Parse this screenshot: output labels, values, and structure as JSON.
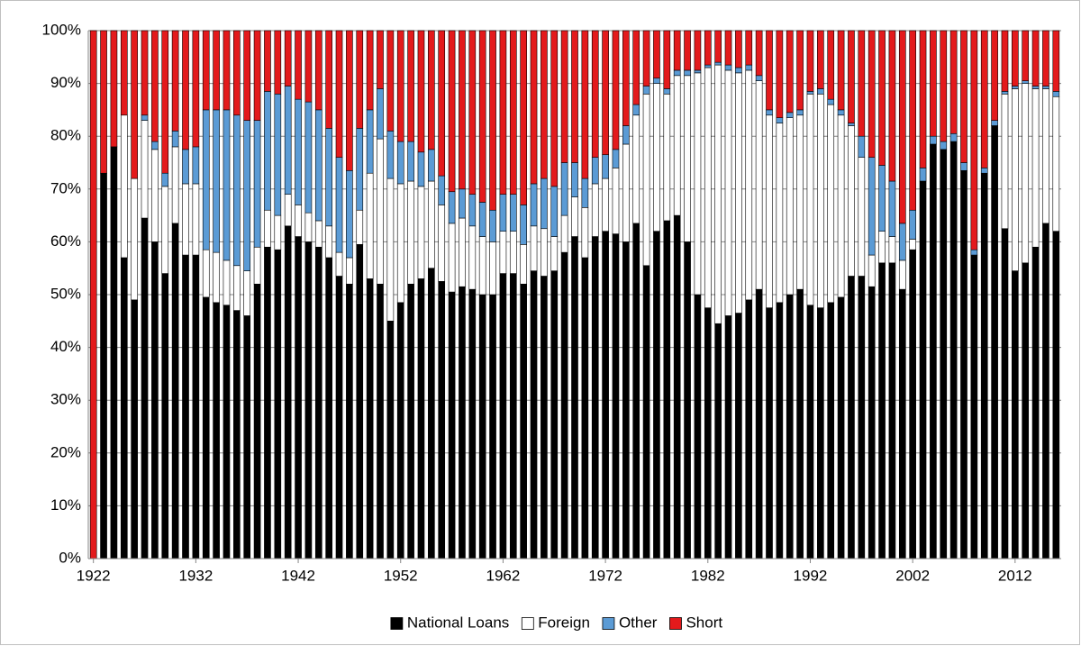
{
  "chart_data": {
    "type": "stacked_bar",
    "categories": [
      "1922",
      null,
      null,
      null,
      null,
      null,
      null,
      null,
      null,
      null,
      "1932",
      null,
      null,
      null,
      null,
      null,
      null,
      null,
      null,
      null,
      "1942",
      null,
      null,
      null,
      null,
      null,
      null,
      null,
      null,
      null,
      "1952",
      null,
      null,
      null,
      null,
      null,
      null,
      null,
      null,
      null,
      "1962",
      null,
      null,
      null,
      null,
      null,
      null,
      null,
      null,
      null,
      "1972",
      null,
      null,
      null,
      null,
      null,
      null,
      null,
      null,
      null,
      "1982",
      null,
      null,
      null,
      null,
      null,
      null,
      null,
      null,
      null,
      "1992",
      null,
      null,
      null,
      null,
      null,
      null,
      null,
      null,
      null,
      "2002",
      null,
      null,
      null,
      null,
      null,
      null,
      null,
      null,
      null,
      "2012",
      null,
      null,
      null,
      null
    ],
    "series": [
      {
        "name": "National Loans",
        "color": "#000000",
        "values": [
          0,
          73,
          78,
          57,
          49,
          64.5,
          60,
          54,
          63.5,
          57.5,
          57.5,
          49.5,
          48.5,
          48,
          47,
          46,
          52,
          59,
          58.5,
          63,
          61,
          60,
          59,
          57,
          53.5,
          52,
          59.5,
          53,
          52,
          45,
          48.5,
          52,
          53,
          55,
          52.5,
          50.5,
          51.5,
          51,
          50,
          50,
          54,
          54,
          52,
          54.5,
          53.5,
          54.5,
          58,
          61,
          57,
          61,
          62,
          61.5,
          60,
          63.5,
          55.5,
          62,
          64,
          65,
          60,
          50,
          47.5,
          44.5,
          46,
          46.5,
          49,
          51,
          47.5,
          48.5,
          50,
          51,
          48,
          47.5,
          48.5,
          49.5,
          53.5,
          53.5,
          51.5,
          56,
          56,
          51,
          58.5,
          71.5,
          78.5,
          77.5,
          79,
          73.5,
          57.5,
          73,
          82,
          62.5,
          54.5,
          56,
          59,
          63.5,
          62
        ]
      },
      {
        "name": "Foreign",
        "color": "#ffffff",
        "values": [
          0,
          0,
          0,
          27,
          23,
          18.5,
          17.5,
          16.5,
          14.5,
          13.5,
          13.5,
          9,
          9.5,
          8.5,
          8.5,
          8.5,
          7,
          7,
          6.5,
          6,
          6,
          5.5,
          5,
          6,
          4.5,
          5,
          6.5,
          20,
          27.5,
          27,
          22.5,
          19.5,
          17.5,
          16.5,
          14.5,
          13,
          13,
          12,
          11,
          10,
          8,
          8,
          7.5,
          8.5,
          9,
          6.5,
          7,
          7.5,
          9.5,
          10,
          10,
          12.5,
          18.5,
          20.5,
          32.5,
          28,
          24,
          26.5,
          31.5,
          42,
          45.5,
          49,
          46.5,
          45.5,
          43.5,
          39.5,
          36.5,
          34,
          33.5,
          33,
          40,
          40.5,
          37.5,
          34.5,
          28.5,
          22.5,
          6,
          6,
          5,
          5.5,
          2,
          0,
          0,
          0,
          0,
          0,
          0,
          0,
          0,
          25.5,
          34.5,
          34,
          30,
          25.5,
          25.5
        ]
      },
      {
        "name": "Other",
        "color": "#5b9bd5",
        "values": [
          0,
          0,
          0,
          0,
          0,
          1,
          1.5,
          2.5,
          3,
          6.5,
          7,
          26.5,
          27,
          28.5,
          28.5,
          28.5,
          24,
          22.5,
          23,
          20.5,
          20,
          21,
          21,
          18.5,
          18,
          16.5,
          15.5,
          12,
          9.5,
          9,
          8,
          7.5,
          6.5,
          6,
          5.5,
          6,
          5.5,
          6,
          6.5,
          6,
          7,
          7,
          7.5,
          8,
          9.5,
          9.5,
          10,
          6.5,
          5.5,
          5,
          4.5,
          3.5,
          3.5,
          2,
          1.5,
          1,
          1,
          1,
          1,
          0.5,
          0.5,
          0.5,
          1,
          1,
          1,
          1,
          1,
          1,
          1,
          1,
          0.5,
          1,
          1,
          1,
          0.5,
          4,
          18.5,
          12.5,
          10.5,
          7,
          5.5,
          2.5,
          1.5,
          1.5,
          1.5,
          1.5,
          1,
          1,
          1,
          0.5,
          0.5,
          0.5,
          0.5,
          0.5,
          1
        ]
      },
      {
        "name": "Short",
        "color": "#e31a1c",
        "values": [
          100,
          27,
          22,
          16,
          28,
          16,
          21,
          27,
          19,
          22.5,
          22,
          15,
          15,
          15,
          16,
          17,
          17,
          11.5,
          12,
          10.5,
          13,
          13.5,
          15,
          18.5,
          24,
          26.5,
          18.5,
          15,
          11,
          19,
          21,
          21,
          23,
          22.5,
          27.5,
          30.5,
          30,
          31,
          32.5,
          34,
          31,
          31,
          33,
          29,
          28,
          29.5,
          25,
          25,
          28,
          24,
          23.5,
          22.5,
          18,
          14,
          10.5,
          9,
          11,
          7.5,
          7.5,
          7.5,
          6.5,
          6,
          6.5,
          7,
          6.5,
          8.5,
          15,
          16.5,
          15.5,
          15,
          11.5,
          11,
          13,
          15,
          17.5,
          20,
          24,
          25.5,
          28.5,
          36.5,
          34,
          26,
          20,
          21,
          19.5,
          25,
          41.5,
          26,
          17,
          11.5,
          10.5,
          9.5,
          10.5,
          10.5,
          11.5
        ]
      }
    ],
    "ylim": [
      0,
      100
    ],
    "yticks": [
      {
        "value": 0,
        "label": "0%"
      },
      {
        "value": 10,
        "label": "10%"
      },
      {
        "value": 20,
        "label": "20%"
      },
      {
        "value": 30,
        "label": "30%"
      },
      {
        "value": 40,
        "label": "40%"
      },
      {
        "value": 50,
        "label": "50%"
      },
      {
        "value": 60,
        "label": "60%"
      },
      {
        "value": 70,
        "label": "70%"
      },
      {
        "value": 80,
        "label": "80%"
      },
      {
        "value": 90,
        "label": "90%"
      },
      {
        "value": 100,
        "label": "100%"
      }
    ],
    "grid": true,
    "legend": "bottom"
  }
}
